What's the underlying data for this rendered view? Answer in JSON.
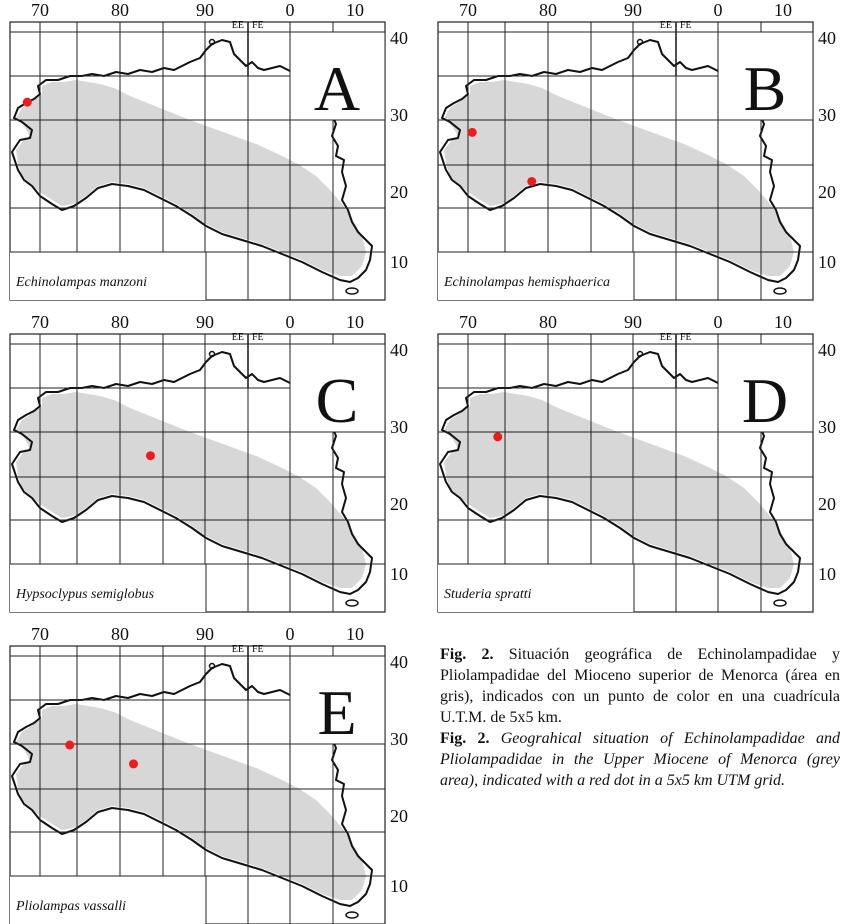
{
  "figure": {
    "caption_es_label": "Fig. 2.",
    "caption_es_text": "Situación geográfica de Echinolampadidae y Pliolampadidae del Mioceno superior de Menorca (área en gris), indicados con un punto de color en una cuadrícula U.T.M. de 5x5 km.",
    "caption_en_label": "Fig. 2.",
    "caption_en_text": "Geograhical situation of Echinolampadidae and Pliolampadidae in the Upper Miocene of Menorca (grey area), indicated with a red dot in a 5x5 km UTM grid."
  },
  "grid": {
    "x_labels": [
      "70",
      "80",
      "90",
      "0",
      "10"
    ],
    "y_labels": [
      "40",
      "30",
      "20",
      "10"
    ],
    "zone_labels": [
      "EE",
      "FE"
    ]
  },
  "colors": {
    "coast": "#111111",
    "grid": "#222222",
    "miocene_area": "#d7d7d7",
    "dot": "#ee1c1c"
  },
  "panels": [
    {
      "letter": "A",
      "species": "Echinolampas manzoni",
      "records": [
        {
          "x": 68.5,
          "y": 31.5
        }
      ]
    },
    {
      "letter": "B",
      "species": "Echinolampas hemisphaerica",
      "records": [
        {
          "x": 70.5,
          "y": 27.5
        },
        {
          "x": 77.5,
          "y": 21.0
        }
      ]
    },
    {
      "letter": "C",
      "species": "Hypsoclypus semiglobus",
      "records": [
        {
          "x": 83.0,
          "y": 26.0
        }
      ]
    },
    {
      "letter": "D",
      "species": "Studeria spratti",
      "records": [
        {
          "x": 73.5,
          "y": 28.5
        }
      ]
    },
    {
      "letter": "E",
      "species": "Pliolampas vassalli",
      "records": [
        {
          "x": 73.5,
          "y": 29.0
        },
        {
          "x": 81.0,
          "y": 26.5
        }
      ]
    }
  ]
}
